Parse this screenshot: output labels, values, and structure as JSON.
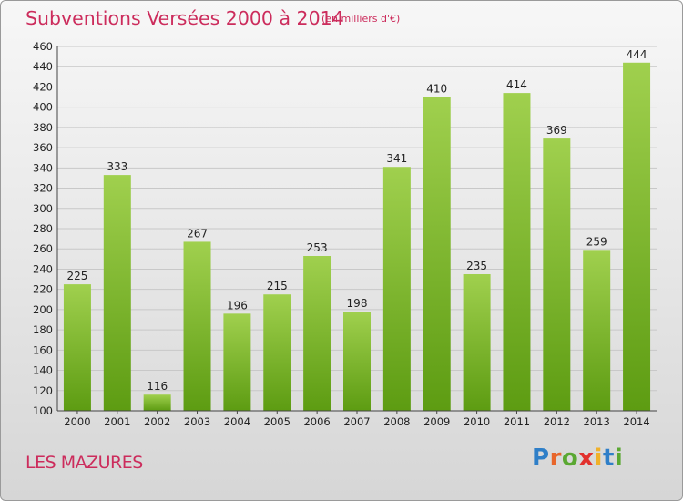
{
  "header": {
    "title": "Subventions Versées 2000 à 2014",
    "subtitle": "(en milliers d'€)"
  },
  "footer": {
    "commune": "LES MAZURES",
    "logo_letters": [
      "P",
      "r",
      "o",
      "x",
      "i",
      "t",
      "i"
    ],
    "logo_colors": [
      "#2f7fc8",
      "#e8662b",
      "#5aa832",
      "#e2312d",
      "#f0b12a",
      "#2f7fc8",
      "#5aa832"
    ]
  },
  "chart_data": {
    "type": "bar",
    "categories": [
      "2000",
      "2001",
      "2002",
      "2003",
      "2004",
      "2005",
      "2006",
      "2007",
      "2008",
      "2009",
      "2010",
      "2011",
      "2012",
      "2013",
      "2014"
    ],
    "values": [
      225,
      333,
      116,
      267,
      196,
      215,
      253,
      198,
      341,
      410,
      235,
      414,
      369,
      259,
      444
    ],
    "ylim": [
      100,
      460
    ],
    "ytick_step": 20,
    "grid": true,
    "bar_color_light": "#a0d04e",
    "bar_color_dark": "#5d9c12",
    "title": "Subventions Versées 2000 à 2014",
    "xlabel": "",
    "ylabel": ""
  }
}
